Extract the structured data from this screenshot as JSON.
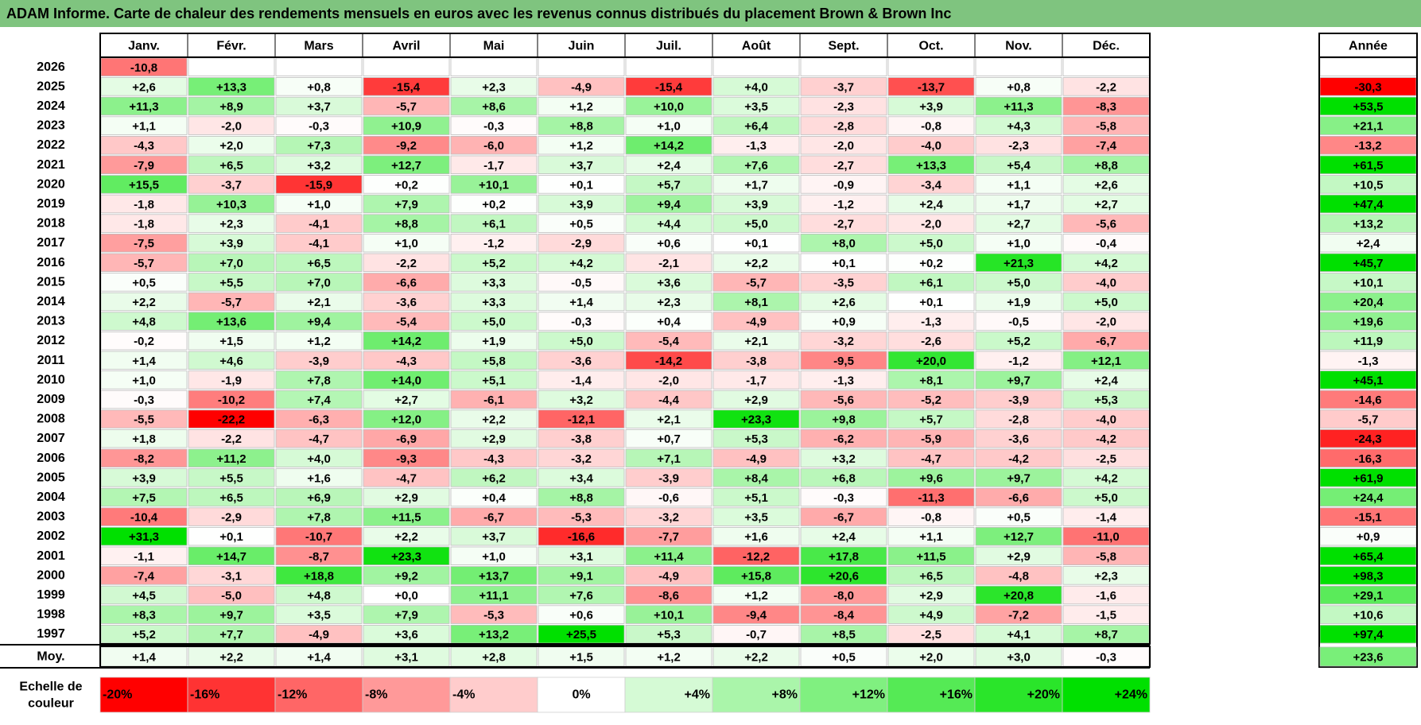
{
  "title": "ADAM Informe. Carte de chaleur des rendements mensuels en euros avec les revenus connus distribués du placement Brown & Brown Inc",
  "colors": {
    "title_bg": "#7fc47f",
    "negative_max": "#ff0000",
    "positive_max": "#00e000",
    "neutral": "#ffffff"
  },
  "chart_data": {
    "type": "heatmap",
    "title": "ADAM Informe. Carte de chaleur des rendements mensuels en euros avec les revenus connus distribués du placement Brown & Brown Inc",
    "months": [
      "Janv.",
      "Févr.",
      "Mars",
      "Avril",
      "Mai",
      "Juin",
      "Juil.",
      "Août",
      "Sept.",
      "Oct.",
      "Nov.",
      "Déc."
    ],
    "year_header": "Année",
    "avg_label": "Moy.",
    "rows": [
      {
        "year": "2026",
        "months": [
          "-10,8",
          "",
          "",
          "",
          "",
          "",
          "",
          "",
          "",
          "",
          "",
          ""
        ],
        "annual": ""
      },
      {
        "year": "2025",
        "months": [
          "+2,6",
          "+13,3",
          "+0,8",
          "-15,4",
          "+2,3",
          "-4,9",
          "-15,4",
          "+4,0",
          "-3,7",
          "-13,7",
          "+0,8",
          "-2,2"
        ],
        "annual": "-30,3"
      },
      {
        "year": "2024",
        "months": [
          "+11,3",
          "+8,9",
          "+3,7",
          "-5,7",
          "+8,6",
          "+1,2",
          "+10,0",
          "+3,5",
          "-2,3",
          "+3,9",
          "+11,3",
          "-8,3"
        ],
        "annual": "+53,5"
      },
      {
        "year": "2023",
        "months": [
          "+1,1",
          "-2,0",
          "-0,3",
          "+10,9",
          "-0,3",
          "+8,8",
          "+1,0",
          "+6,4",
          "-2,8",
          "-0,8",
          "+4,3",
          "-5,8"
        ],
        "annual": "+21,1"
      },
      {
        "year": "2022",
        "months": [
          "-4,3",
          "+2,0",
          "+7,3",
          "-9,2",
          "-6,0",
          "+1,2",
          "+14,2",
          "-1,3",
          "-2,0",
          "-4,0",
          "-2,3",
          "-7,4"
        ],
        "annual": "-13,2"
      },
      {
        "year": "2021",
        "months": [
          "-7,9",
          "+6,5",
          "+3,2",
          "+12,7",
          "-1,7",
          "+3,7",
          "+2,4",
          "+7,6",
          "-2,7",
          "+13,3",
          "+5,4",
          "+8,8"
        ],
        "annual": "+61,5"
      },
      {
        "year": "2020",
        "months": [
          "+15,5",
          "-3,7",
          "-15,9",
          "+0,2",
          "+10,1",
          "+0,1",
          "+5,7",
          "+1,7",
          "-0,9",
          "-3,4",
          "+1,1",
          "+2,6"
        ],
        "annual": "+10,5"
      },
      {
        "year": "2019",
        "months": [
          "-1,8",
          "+10,3",
          "+1,0",
          "+7,9",
          "+0,2",
          "+3,9",
          "+9,4",
          "+3,9",
          "-1,2",
          "+2,4",
          "+1,7",
          "+2,7"
        ],
        "annual": "+47,4"
      },
      {
        "year": "2018",
        "months": [
          "-1,8",
          "+2,3",
          "-4,1",
          "+8,8",
          "+6,1",
          "+0,5",
          "+4,4",
          "+5,0",
          "-2,7",
          "-2,0",
          "+2,7",
          "-5,6"
        ],
        "annual": "+13,2"
      },
      {
        "year": "2017",
        "months": [
          "-7,5",
          "+3,9",
          "-4,1",
          "+1,0",
          "-1,2",
          "-2,9",
          "+0,6",
          "+0,1",
          "+8,0",
          "+5,0",
          "+1,0",
          "-0,4"
        ],
        "annual": "+2,4"
      },
      {
        "year": "2016",
        "months": [
          "-5,7",
          "+7,0",
          "+6,5",
          "-2,2",
          "+5,2",
          "+4,2",
          "-2,1",
          "+2,2",
          "+0,1",
          "+0,2",
          "+21,3",
          "+4,2"
        ],
        "annual": "+45,7"
      },
      {
        "year": "2015",
        "months": [
          "+0,5",
          "+5,5",
          "+7,0",
          "-6,6",
          "+3,3",
          "-0,5",
          "+3,6",
          "-5,7",
          "-3,5",
          "+6,1",
          "+5,0",
          "-4,0"
        ],
        "annual": "+10,1"
      },
      {
        "year": "2014",
        "months": [
          "+2,2",
          "-5,7",
          "+2,1",
          "-3,6",
          "+3,3",
          "+1,4",
          "+2,3",
          "+8,1",
          "+2,6",
          "+0,1",
          "+1,9",
          "+5,0"
        ],
        "annual": "+20,4"
      },
      {
        "year": "2013",
        "months": [
          "+4,8",
          "+13,6",
          "+9,4",
          "-5,4",
          "+5,0",
          "-0,3",
          "+0,4",
          "-4,9",
          "+0,9",
          "-1,3",
          "-0,5",
          "-2,0"
        ],
        "annual": "+19,6"
      },
      {
        "year": "2012",
        "months": [
          "-0,2",
          "+1,5",
          "+1,2",
          "+14,2",
          "+1,9",
          "+5,0",
          "-5,4",
          "+2,1",
          "-3,2",
          "-2,6",
          "+5,2",
          "-6,7"
        ],
        "annual": "+11,9"
      },
      {
        "year": "2011",
        "months": [
          "+1,4",
          "+4,6",
          "-3,9",
          "-4,3",
          "+5,8",
          "-3,6",
          "-14,2",
          "-3,8",
          "-9,5",
          "+20,0",
          "-1,2",
          "+12,1"
        ],
        "annual": "-1,3"
      },
      {
        "year": "2010",
        "months": [
          "+1,0",
          "-1,9",
          "+7,8",
          "+14,0",
          "+5,1",
          "-1,4",
          "-2,0",
          "-1,7",
          "-1,3",
          "+8,1",
          "+9,7",
          "+2,4"
        ],
        "annual": "+45,1"
      },
      {
        "year": "2009",
        "months": [
          "-0,3",
          "-10,2",
          "+7,4",
          "+2,7",
          "-6,1",
          "+3,2",
          "-4,4",
          "+2,9",
          "-5,6",
          "-5,2",
          "-3,9",
          "+5,3"
        ],
        "annual": "-14,6"
      },
      {
        "year": "2008",
        "months": [
          "-5,5",
          "-22,2",
          "-6,3",
          "+12,0",
          "+2,2",
          "-12,1",
          "+2,1",
          "+23,3",
          "+9,8",
          "+5,7",
          "-2,8",
          "-4,0"
        ],
        "annual": "-5,7"
      },
      {
        "year": "2007",
        "months": [
          "+1,8",
          "-2,2",
          "-4,7",
          "-6,9",
          "+2,9",
          "-3,8",
          "+0,7",
          "+5,3",
          "-6,2",
          "-5,9",
          "-3,6",
          "-4,2"
        ],
        "annual": "-24,3"
      },
      {
        "year": "2006",
        "months": [
          "-8,2",
          "+11,2",
          "+4,0",
          "-9,3",
          "-4,3",
          "-3,2",
          "+7,1",
          "-4,9",
          "+3,2",
          "-4,7",
          "-4,2",
          "-2,5"
        ],
        "annual": "-16,3"
      },
      {
        "year": "2005",
        "months": [
          "+3,9",
          "+5,5",
          "+1,6",
          "-4,7",
          "+6,2",
          "+3,4",
          "-3,9",
          "+8,4",
          "+6,8",
          "+9,6",
          "+9,7",
          "+4,2"
        ],
        "annual": "+61,9"
      },
      {
        "year": "2004",
        "months": [
          "+7,5",
          "+6,5",
          "+6,9",
          "+2,9",
          "+0,4",
          "+8,8",
          "-0,6",
          "+5,1",
          "-0,3",
          "-11,3",
          "-6,6",
          "+5,0"
        ],
        "annual": "+24,4"
      },
      {
        "year": "2003",
        "months": [
          "-10,4",
          "-2,9",
          "+7,8",
          "+11,5",
          "-6,7",
          "-5,3",
          "-3,2",
          "+3,5",
          "-6,7",
          "-0,8",
          "+0,5",
          "-1,4"
        ],
        "annual": "-15,1"
      },
      {
        "year": "2002",
        "months": [
          "+31,3",
          "+0,1",
          "-10,7",
          "+2,2",
          "+3,7",
          "-16,6",
          "-7,7",
          "+1,6",
          "+2,4",
          "+1,1",
          "+12,7",
          "-11,0"
        ],
        "annual": "+0,9"
      },
      {
        "year": "2001",
        "months": [
          "-1,1",
          "+14,7",
          "-8,7",
          "+23,3",
          "+1,0",
          "+3,1",
          "+11,4",
          "-12,2",
          "+17,8",
          "+11,5",
          "+2,9",
          "-5,8"
        ],
        "annual": "+65,4"
      },
      {
        "year": "2000",
        "months": [
          "-7,4",
          "-3,1",
          "+18,8",
          "+9,2",
          "+13,7",
          "+9,1",
          "-4,9",
          "+15,8",
          "+20,6",
          "+6,5",
          "-4,8",
          "+2,3"
        ],
        "annual": "+98,3"
      },
      {
        "year": "1999",
        "months": [
          "+4,5",
          "-5,0",
          "+4,8",
          "+0,0",
          "+11,1",
          "+7,6",
          "-8,6",
          "+1,2",
          "-8,0",
          "+2,9",
          "+20,8",
          "-1,6"
        ],
        "annual": "+29,1"
      },
      {
        "year": "1998",
        "months": [
          "+8,3",
          "+9,7",
          "+3,5",
          "+7,9",
          "-5,3",
          "+0,6",
          "+10,1",
          "-9,4",
          "-8,4",
          "+4,9",
          "-7,2",
          "-1,5"
        ],
        "annual": "+10,6"
      },
      {
        "year": "1997",
        "months": [
          "+5,2",
          "+7,7",
          "-4,9",
          "+3,6",
          "+13,2",
          "+25,5",
          "+5,3",
          "-0,7",
          "+8,5",
          "-2,5",
          "+4,1",
          "+8,7"
        ],
        "annual": "+97,4"
      }
    ],
    "average": {
      "months": [
        "+1,4",
        "+2,2",
        "+1,4",
        "+3,1",
        "+2,8",
        "+1,5",
        "+1,2",
        "+2,2",
        "+0,5",
        "+2,0",
        "+3,0",
        "-0,3"
      ],
      "annual": "+23,6"
    },
    "scale_label": "Echelle de couleur",
    "scale": [
      "-20%",
      "-16%",
      "-12%",
      "-8%",
      "-4%",
      "0%",
      "+4%",
      "+8%",
      "+12%",
      "+16%",
      "+20%",
      "+24%"
    ]
  }
}
